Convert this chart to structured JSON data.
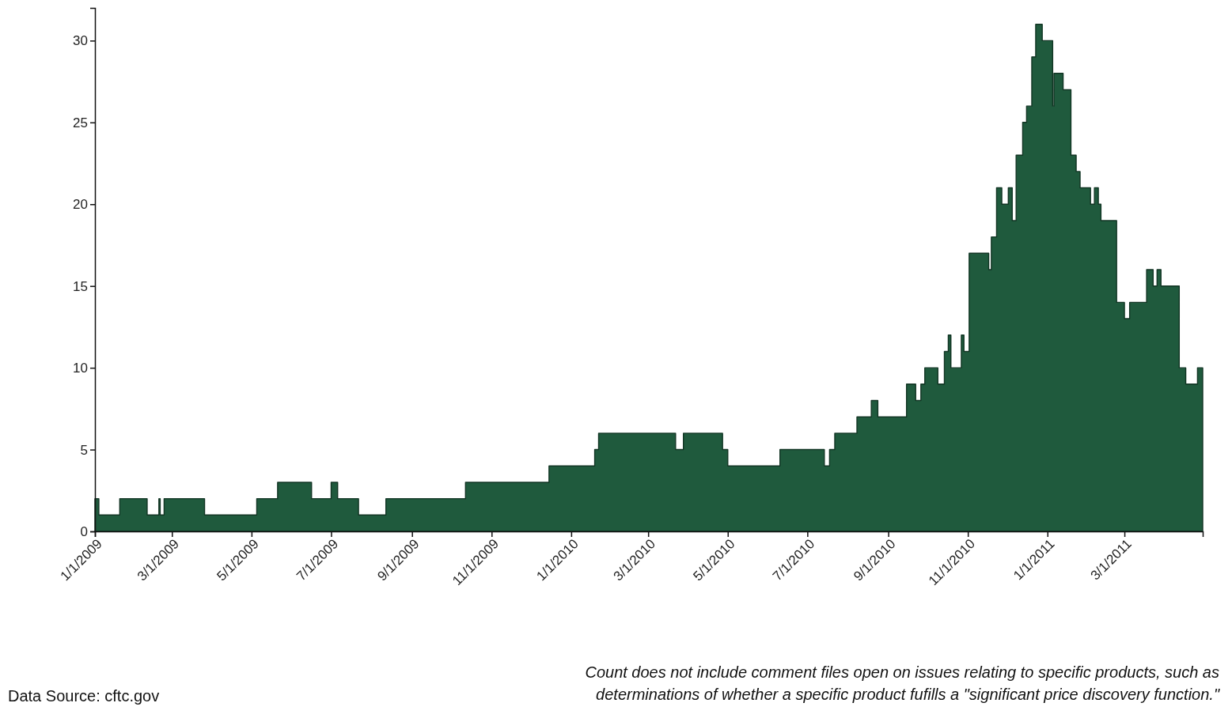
{
  "chart_data": {
    "type": "area",
    "x": [
      "2009-01-01",
      "2009-01-04",
      "2009-01-20",
      "2009-02-10",
      "2009-02-19",
      "2009-02-20",
      "2009-02-23",
      "2009-03-26",
      "2009-05-05",
      "2009-05-21",
      "2009-06-16",
      "2009-07-01",
      "2009-07-06",
      "2009-07-22",
      "2009-08-12",
      "2009-10-12",
      "2009-12-15",
      "2010-01-19",
      "2010-01-22",
      "2010-03-22",
      "2010-03-28",
      "2010-04-27",
      "2010-05-01",
      "2010-06-10",
      "2010-07-14",
      "2010-07-18",
      "2010-07-22",
      "2010-08-08",
      "2010-08-19",
      "2010-08-24",
      "2010-09-15",
      "2010-09-22",
      "2010-09-26",
      "2010-09-29",
      "2010-10-09",
      "2010-10-14",
      "2010-10-17",
      "2010-10-19",
      "2010-10-27",
      "2010-10-29",
      "2010-11-02",
      "2010-11-17",
      "2010-11-19",
      "2010-11-23",
      "2010-11-27",
      "2010-12-02",
      "2010-12-05",
      "2010-12-08",
      "2010-12-13",
      "2010-12-16",
      "2010-12-20",
      "2010-12-23",
      "2010-12-28",
      "2011-01-05",
      "2011-01-06",
      "2011-01-13",
      "2011-01-19",
      "2011-01-23",
      "2011-01-26",
      "2011-02-03",
      "2011-02-06",
      "2011-02-09",
      "2011-02-11",
      "2011-02-23",
      "2011-03-01",
      "2011-03-05",
      "2011-03-18",
      "2011-03-23",
      "2011-03-26",
      "2011-03-29",
      "2011-04-12",
      "2011-04-17",
      "2011-04-26",
      "2011-04-30"
    ],
    "series": [
      {
        "color": "#1f5a3d",
        "values": [
          2,
          1,
          2,
          1,
          2,
          1,
          2,
          1,
          2,
          3,
          2,
          3,
          2,
          1,
          2,
          3,
          4,
          5,
          6,
          5,
          6,
          5,
          4,
          5,
          4,
          5,
          6,
          7,
          8,
          7,
          9,
          8,
          9,
          10,
          9,
          11,
          12,
          10,
          12,
          11,
          17,
          16,
          18,
          21,
          20,
          21,
          19,
          23,
          25,
          26,
          29,
          31,
          30,
          26,
          28,
          27,
          23,
          22,
          21,
          20,
          21,
          20,
          19,
          14,
          13,
          14,
          16,
          15,
          16,
          15,
          10,
          9,
          10,
          10
        ]
      }
    ],
    "xlim": [
      "2009-01-01",
      "2011-04-30"
    ],
    "xticks": [
      {
        "value": "2009-01-01",
        "label": "1/1/2009"
      },
      {
        "value": "2009-03-01",
        "label": "3/1/2009"
      },
      {
        "value": "2009-05-01",
        "label": "5/1/2009"
      },
      {
        "value": "2009-07-01",
        "label": "7/1/2009"
      },
      {
        "value": "2009-09-01",
        "label": "9/1/2009"
      },
      {
        "value": "2009-11-01",
        "label": "11/1/2009"
      },
      {
        "value": "2010-01-01",
        "label": "1/1/2010"
      },
      {
        "value": "2010-03-01",
        "label": "3/1/2010"
      },
      {
        "value": "2010-05-01",
        "label": "5/1/2010"
      },
      {
        "value": "2010-07-01",
        "label": "7/1/2010"
      },
      {
        "value": "2010-09-01",
        "label": "9/1/2010"
      },
      {
        "value": "2010-11-01",
        "label": "11/1/2010"
      },
      {
        "value": "2011-01-01",
        "label": "1/1/2011"
      },
      {
        "value": "2011-03-01",
        "label": "3/1/2011"
      }
    ],
    "ylim": [
      0,
      32
    ],
    "yticks": [
      0,
      5,
      10,
      15,
      20,
      25,
      30
    ],
    "grid": false,
    "marker": "none",
    "line_style": "solid",
    "annotations": [
      "Data Source: cftc.gov",
      "Count does not include comment files open on issues relating to specific products, such as determinations of whether a specific product fufills a \"significant price discovery function.\""
    ]
  }
}
